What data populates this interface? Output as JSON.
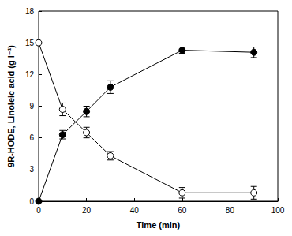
{
  "chart_data": {
    "type": "line",
    "x_label": "Time (min)",
    "y_label": "9R-HODE, Linoleic acid (g l⁻¹)",
    "x": [
      0,
      10,
      20,
      30,
      60,
      90
    ],
    "series": [
      {
        "color": "#000000",
        "marker": "filled_circle",
        "values": [
          0,
          6.3,
          8.5,
          10.8,
          14.3,
          14.1
        ],
        "error": [
          0,
          0.4,
          0.5,
          0.6,
          0.3,
          0.5
        ]
      },
      {
        "color": "#000000",
        "marker": "open_circle",
        "values": [
          15,
          8.7,
          6.5,
          4.3,
          0.8,
          0.8
        ],
        "error": [
          0,
          0.6,
          0.5,
          0.4,
          0.5,
          0.6
        ]
      }
    ],
    "xlim": [
      0,
      100
    ],
    "xticks": [
      0,
      20,
      40,
      60,
      80,
      100
    ],
    "ylim": [
      0,
      18
    ],
    "yticks": [
      0,
      3,
      6,
      9,
      12,
      15,
      18
    ],
    "grid": false
  }
}
